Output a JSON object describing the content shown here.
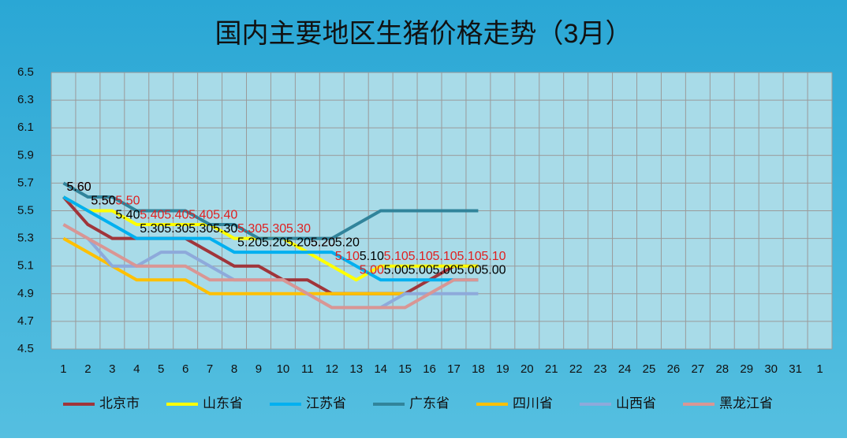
{
  "chart_data": {
    "type": "line",
    "title": "国内主要地区生猪价格走势（3月）",
    "categories": [
      "1",
      "2",
      "3",
      "4",
      "5",
      "6",
      "7",
      "8",
      "9",
      "10",
      "11",
      "12",
      "13",
      "14",
      "15",
      "16",
      "17",
      "18",
      "19",
      "20",
      "21",
      "22",
      "23",
      "24",
      "25",
      "26",
      "27",
      "28",
      "29",
      "30",
      "31",
      "1"
    ],
    "ylim": [
      4.5,
      6.5
    ],
    "yticks": [
      4.5,
      4.7,
      4.9,
      5.1,
      5.3,
      5.5,
      5.7,
      5.9,
      6.1,
      6.3,
      6.5
    ],
    "grid": true,
    "legend": "bottom",
    "series": [
      {
        "name": "北京市",
        "color": "#a0353a",
        "values": [
          5.6,
          5.4,
          5.3,
          5.3,
          5.3,
          5.3,
          5.2,
          5.1,
          5.1,
          5.0,
          5.0,
          4.9,
          4.9,
          4.9,
          4.9,
          5.0,
          5.1,
          5.1,
          null,
          null,
          null,
          null,
          null,
          null,
          null,
          null,
          null,
          null,
          null,
          null,
          null,
          null
        ]
      },
      {
        "name": "山东省",
        "color": "#ffff00",
        "label_color": "#e02020",
        "values": [
          5.6,
          5.5,
          5.5,
          5.4,
          5.4,
          5.4,
          5.4,
          5.3,
          5.3,
          5.3,
          5.2,
          5.1,
          5.0,
          5.1,
          5.1,
          5.1,
          5.1,
          5.1,
          null,
          null,
          null,
          null,
          null,
          null,
          null,
          null,
          null,
          null,
          null,
          null,
          null,
          null
        ],
        "value_labels": [
          "5.60",
          "5.50",
          "5.50",
          "5.40",
          "5.40",
          "5.40",
          "5.40",
          "5.30",
          "5.30",
          "5.30",
          "5.20",
          "5.10",
          "5.00",
          "5.10",
          "5.10",
          "5.10",
          "5.10",
          "5.10",
          null,
          null,
          null,
          null,
          null,
          null,
          null,
          null,
          null,
          null,
          null,
          null,
          null,
          null
        ]
      },
      {
        "name": "江苏省",
        "color": "#00b0f0",
        "label_color": "#000000",
        "values": [
          5.6,
          5.5,
          5.4,
          5.3,
          5.3,
          5.3,
          5.3,
          5.2,
          5.2,
          5.2,
          5.2,
          5.2,
          5.1,
          5.0,
          5.0,
          5.0,
          5.0,
          5.0,
          null,
          null,
          null,
          null,
          null,
          null,
          null,
          null,
          null,
          null,
          null,
          null,
          null,
          null
        ],
        "value_labels": [
          "5.60",
          "5.50",
          "5.40",
          "5.30",
          "5.30",
          "5.30",
          "5.30",
          "5.20",
          "5.20",
          "5.20",
          "5.20",
          "5.20",
          "5.10",
          "5.00",
          "5.00",
          "5.00",
          "5.00",
          "5.00",
          null,
          null,
          null,
          null,
          null,
          null,
          null,
          null,
          null,
          null,
          null,
          null,
          null,
          null
        ]
      },
      {
        "name": "广东省",
        "color": "#31849b",
        "values": [
          5.7,
          5.6,
          5.6,
          5.5,
          5.5,
          5.5,
          5.4,
          5.4,
          5.3,
          5.3,
          5.3,
          5.3,
          5.4,
          5.5,
          5.5,
          5.5,
          5.5,
          5.5,
          null,
          null,
          null,
          null,
          null,
          null,
          null,
          null,
          null,
          null,
          null,
          null,
          null,
          null
        ]
      },
      {
        "name": "四川省",
        "color": "#ffc000",
        "values": [
          5.3,
          5.2,
          5.1,
          5.0,
          5.0,
          5.0,
          4.9,
          4.9,
          4.9,
          4.9,
          4.9,
          4.9,
          4.9,
          4.9,
          4.9,
          null,
          null,
          null,
          null,
          null,
          null,
          null,
          null,
          null,
          null,
          null,
          null,
          null,
          null,
          null,
          null,
          null
        ]
      },
      {
        "name": "山西省",
        "color": "#8eaadb",
        "values": [
          5.4,
          5.3,
          5.1,
          5.1,
          5.2,
          5.2,
          5.1,
          5.0,
          5.0,
          5.0,
          4.9,
          4.8,
          4.8,
          4.8,
          4.9,
          4.9,
          4.9,
          4.9,
          null,
          null,
          null,
          null,
          null,
          null,
          null,
          null,
          null,
          null,
          null,
          null,
          null,
          null
        ]
      },
      {
        "name": "黑龙江省",
        "color": "#d99694",
        "values": [
          5.4,
          5.3,
          5.2,
          5.1,
          5.1,
          5.1,
          5.0,
          5.0,
          5.0,
          5.0,
          4.9,
          4.8,
          4.8,
          4.8,
          4.8,
          4.9,
          5.0,
          5.0,
          null,
          null,
          null,
          null,
          null,
          null,
          null,
          null,
          null,
          null,
          null,
          null,
          null,
          null
        ]
      }
    ]
  }
}
